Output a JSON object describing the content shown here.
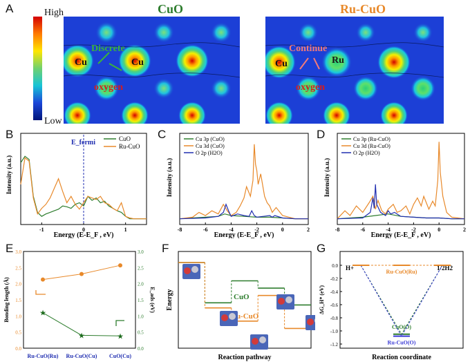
{
  "panel_labels": [
    "A",
    "B",
    "C",
    "D",
    "E",
    "F",
    "G"
  ],
  "panelA": {
    "colorbar": {
      "high": "High",
      "low": "Low"
    },
    "left": {
      "title": "CuO",
      "atom1": "Cu",
      "atom2": "Cu",
      "oxygen": "oxygen",
      "annotation": "Discrete"
    },
    "right": {
      "title": "Ru-CuO",
      "atom1": "Cu",
      "atom2": "Ru",
      "oxygen": "oxygen",
      "annotation": "Continue"
    }
  },
  "colors": {
    "cuo": "#2e7d2e",
    "rucuo": "#e8892a",
    "o2p": "#1f2db0",
    "map_bg": "#1c3fd6"
  },
  "chart_data": [
    {
      "id": "B",
      "type": "line",
      "title": "",
      "xlabel": "Energy (E-E_F , eV)",
      "ylabel": "Intensity (a.u.)",
      "xlim": [
        -1.5,
        1.5
      ],
      "xticks": [
        "-1",
        "0",
        "1"
      ],
      "fermi_label": "E_fermi",
      "legend": [
        "CuO",
        "Ru-CuO"
      ],
      "series": [
        {
          "name": "CuO",
          "x": [
            -1.5,
            -1.4,
            -1.3,
            -1.2,
            -1.1,
            -1.0,
            -0.9,
            -0.8,
            -0.7,
            -0.6,
            -0.5,
            -0.4,
            -0.3,
            -0.2,
            -0.1,
            0.0,
            0.1,
            0.2,
            0.3,
            0.4,
            0.5,
            0.6,
            0.7,
            0.8,
            0.9,
            1.0,
            1.1,
            1.2,
            1.3,
            1.4,
            1.5
          ],
          "y": [
            0.72,
            0.8,
            0.76,
            0.3,
            0.1,
            0.05,
            0.08,
            0.1,
            0.12,
            0.14,
            0.18,
            0.17,
            0.15,
            0.2,
            0.22,
            0.18,
            0.3,
            0.25,
            0.28,
            0.22,
            0.24,
            0.18,
            0.15,
            0.12,
            0.1,
            0.05,
            0.02,
            0.02,
            0.02,
            0.02,
            0.02
          ]
        },
        {
          "name": "Ru-CuO",
          "x": [
            -1.5,
            -1.4,
            -1.3,
            -1.2,
            -1.1,
            -1.0,
            -0.9,
            -0.8,
            -0.7,
            -0.6,
            -0.5,
            -0.4,
            -0.3,
            -0.2,
            -0.1,
            0.0,
            0.1,
            0.2,
            0.3,
            0.4,
            0.5,
            0.6,
            0.7,
            0.8,
            0.9,
            1.0,
            1.1,
            1.2,
            1.3,
            1.4,
            1.5
          ],
          "y": [
            0.45,
            0.78,
            0.74,
            0.28,
            0.08,
            0.15,
            0.2,
            0.28,
            0.4,
            0.52,
            0.36,
            0.22,
            0.3,
            0.2,
            0.14,
            0.22,
            0.3,
            0.28,
            0.26,
            0.3,
            0.22,
            0.2,
            0.15,
            0.12,
            0.22,
            0.05,
            0.03,
            0.02,
            0.02,
            0.02,
            0.02
          ]
        }
      ]
    },
    {
      "id": "C",
      "type": "line",
      "xlabel": "Energy (E-E_F , eV)",
      "ylabel": "Intensity (a.u.)",
      "xlim": [
        -8,
        2
      ],
      "xticks": [
        "-8",
        "-6",
        "-4",
        "-2",
        "0",
        "2"
      ],
      "legend": [
        "Cu 3p (CuO)",
        "Cu 3d (CuO)",
        "O 2p (H2O)"
      ],
      "series": [
        {
          "name": "Cu 3p (CuO)",
          "x": [
            -8,
            -7,
            -6,
            -5,
            -4.5,
            -4,
            -3,
            -2,
            -1,
            0,
            1,
            2
          ],
          "y": [
            0.02,
            0.03,
            0.04,
            0.05,
            0.08,
            0.06,
            0.05,
            0.04,
            0.04,
            0.03,
            0.02,
            0.02
          ]
        },
        {
          "name": "Cu 3d (CuO)",
          "x": [
            -8,
            -7,
            -6.5,
            -6,
            -5.5,
            -5,
            -4.6,
            -4.3,
            -4,
            -3.6,
            -3.3,
            -3,
            -2.8,
            -2.5,
            -2.3,
            -2.2,
            -2.1,
            -2,
            -1.9,
            -1.7,
            -1.4,
            -1.2,
            -1,
            -0.8,
            -0.5,
            0,
            0.5,
            1,
            2
          ],
          "y": [
            0.02,
            0.04,
            0.1,
            0.06,
            0.12,
            0.08,
            0.2,
            0.12,
            0.06,
            0.1,
            0.18,
            0.28,
            0.42,
            0.3,
            0.5,
            0.95,
            0.7,
            0.62,
            0.45,
            0.58,
            0.3,
            0.22,
            0.18,
            0.1,
            0.16,
            0.06,
            0.04,
            0.02,
            0.02
          ]
        },
        {
          "name": "O 2p (H2O)",
          "x": [
            -8,
            -6,
            -5,
            -4.6,
            -4.4,
            -4.2,
            -4,
            -3.5,
            -3,
            -2.6,
            -2.4,
            -2.2,
            -2,
            -1.5,
            -1,
            -0.8,
            -0.6,
            0,
            1,
            2
          ],
          "y": [
            0.02,
            0.03,
            0.05,
            0.1,
            0.2,
            0.12,
            0.05,
            0.08,
            0.06,
            0.05,
            0.12,
            0.06,
            0.04,
            0.05,
            0.06,
            0.04,
            0.06,
            0.03,
            0.02,
            0.02
          ]
        }
      ]
    },
    {
      "id": "D",
      "type": "line",
      "xlabel": "Energy (E-E_F , eV)",
      "ylabel": "Intensity (a.u.)",
      "xlim": [
        -8,
        2
      ],
      "xticks": [
        "-8",
        "-6",
        "-4",
        "-2",
        "0",
        "2"
      ],
      "legend": [
        "Cu 3p (Ru-CuO)",
        "Cu 3d (Ru-CuO)",
        "O 2p (H2O)"
      ],
      "series": [
        {
          "name": "Cu 3p (Ru-CuO)",
          "x": [
            -8,
            -7,
            -6,
            -5,
            -4,
            -3,
            -2,
            -1,
            0,
            1,
            2
          ],
          "y": [
            0.02,
            0.03,
            0.04,
            0.06,
            0.08,
            0.05,
            0.04,
            0.03,
            0.03,
            0.02,
            0.02
          ]
        },
        {
          "name": "Cu 3d (Ru-CuO)",
          "x": [
            -8,
            -7.4,
            -7,
            -6.5,
            -6,
            -5.5,
            -5.2,
            -5,
            -4.8,
            -4.5,
            -4.2,
            -4,
            -3.6,
            -3.3,
            -3,
            -2.6,
            -2.3,
            -2,
            -1.7,
            -1.4,
            -1.2,
            -1,
            -0.8,
            -0.5,
            -0.3,
            -0.1,
            0,
            0.1,
            0.3,
            0.6,
            1,
            2
          ],
          "y": [
            0.02,
            0.12,
            0.06,
            0.18,
            0.1,
            0.22,
            0.3,
            0.14,
            0.25,
            0.12,
            0.08,
            0.14,
            0.2,
            0.1,
            0.12,
            0.18,
            0.08,
            0.2,
            0.28,
            0.18,
            0.3,
            0.22,
            0.14,
            0.24,
            0.18,
            0.5,
            0.98,
            0.6,
            0.3,
            0.1,
            0.04,
            0.02
          ]
        },
        {
          "name": "O 2p (H2O)",
          "x": [
            -8,
            -6,
            -5.4,
            -5.2,
            -5.1,
            -5,
            -4.9,
            -4.6,
            -4.2,
            -4,
            -3.8,
            -3.5,
            -3,
            -2,
            -1,
            0,
            1,
            2
          ],
          "y": [
            0.02,
            0.03,
            0.1,
            0.28,
            0.15,
            0.45,
            0.2,
            0.1,
            0.06,
            0.12,
            0.08,
            0.1,
            0.05,
            0.04,
            0.03,
            0.03,
            0.02,
            0.02
          ]
        }
      ]
    },
    {
      "id": "E",
      "type": "scatter",
      "categories": [
        "Ru-CuO(Ru)",
        "Ru-CuO(Cu)",
        "CuO(Cu)"
      ],
      "ylabel_left": "Bonding length (Å)",
      "ylabel_right": "E_ads (eV)",
      "ylim_left": [
        0.0,
        3.0
      ],
      "ylim_right": [
        0.0,
        3.0
      ],
      "yticks_left": [
        "0.0",
        "0.5",
        "1.0",
        "1.5",
        "2.0",
        "2.5",
        "3.0"
      ],
      "yticks_right": [
        "0.0",
        "0.5",
        "1.0",
        "1.5",
        "2.0",
        "2.5",
        "3.0"
      ],
      "series": [
        {
          "name": "Bonding length",
          "axis": "left",
          "values": [
            2.13,
            2.3,
            2.57
          ]
        },
        {
          "name": "E_ads",
          "axis": "right",
          "values": [
            1.1,
            0.4,
            0.38
          ]
        }
      ]
    },
    {
      "id": "F",
      "type": "diagram",
      "xlabel": "Reaction pathway",
      "ylabel": "Energy",
      "labels": {
        "cuo": "CuO",
        "rucuo": "Ru-CuO"
      },
      "levels_cuo": [
        1.0,
        0.45,
        0.75,
        0.65,
        0.42
      ],
      "levels_rucuo": [
        1.0,
        0.38,
        0.2,
        0.55,
        0.1
      ]
    },
    {
      "id": "G",
      "type": "line",
      "xlabel": "Reaction coordinate",
      "ylabel": "ΔG_H* (eV)",
      "ylim": [
        -1.2,
        0.0
      ],
      "yticks": [
        "0.0",
        "-0.2",
        "-0.4",
        "-0.6",
        "-0.8",
        "-1.0",
        "-1.2"
      ],
      "start_label": "H+",
      "end_label": "1/2H2",
      "series": [
        {
          "name": "CuO(O)",
          "values": [
            0.0,
            -1.05,
            0.0
          ]
        },
        {
          "name": "Ru-CuO(O)",
          "values": [
            0.0,
            -1.08,
            0.0
          ]
        },
        {
          "name": "Ru-CuO(Ru)",
          "values": [
            0.0,
            0.0,
            0.0
          ]
        }
      ]
    }
  ]
}
